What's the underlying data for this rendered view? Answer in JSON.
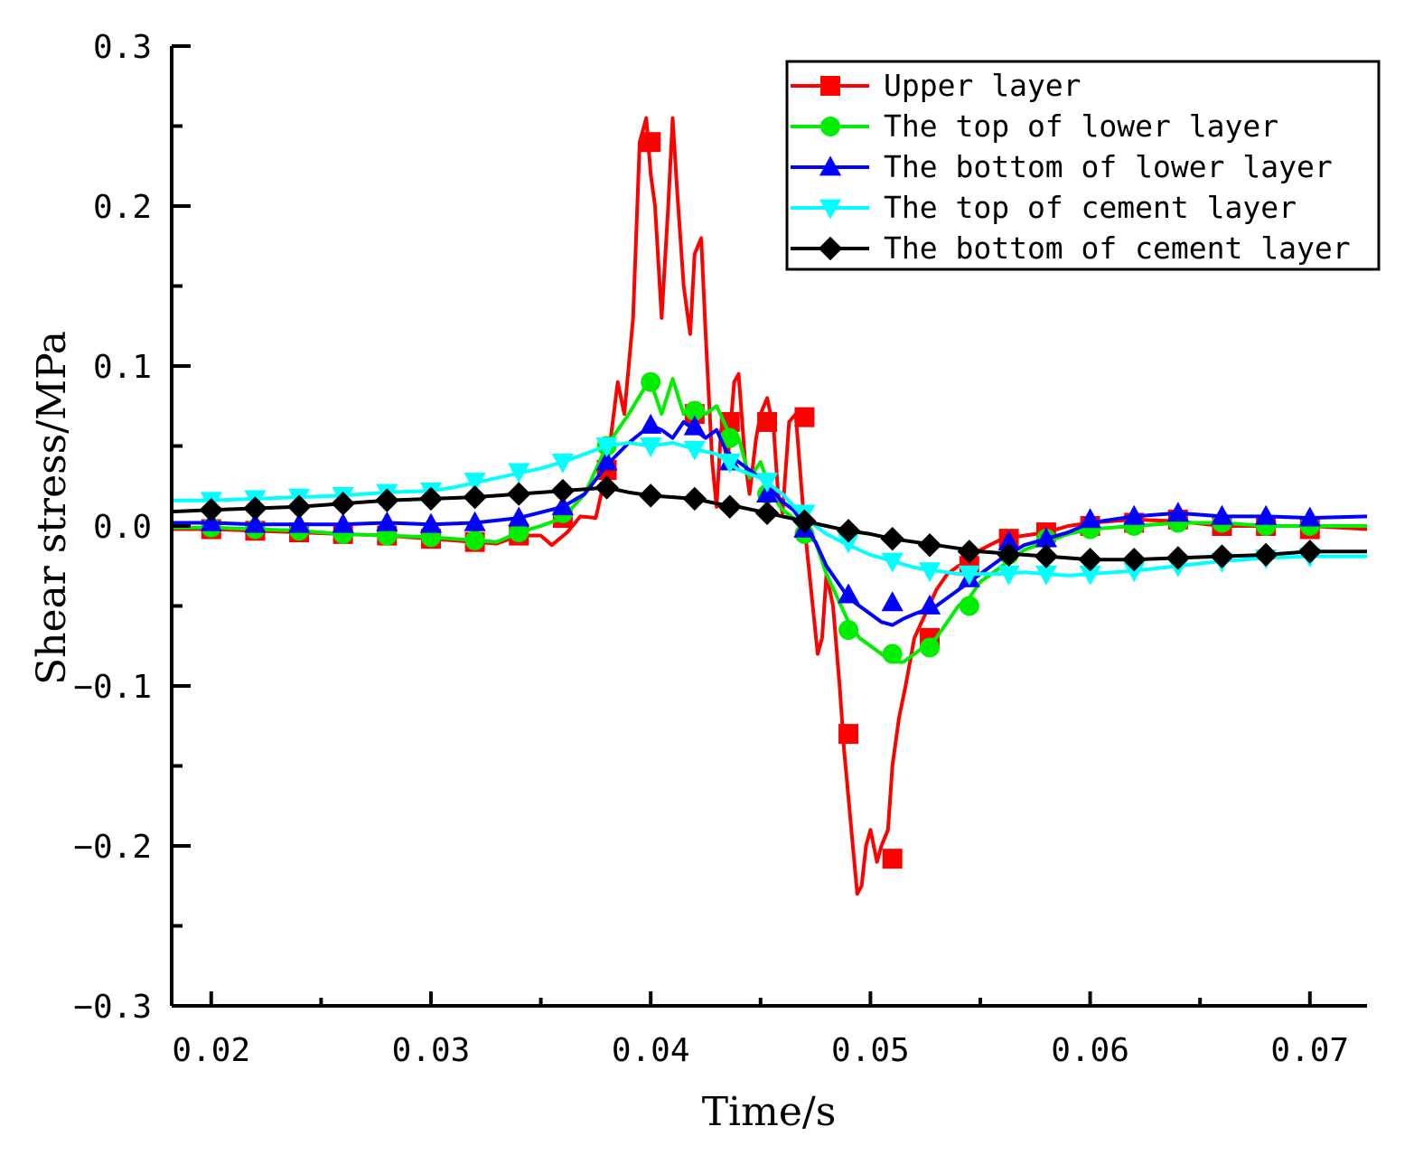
{
  "chart_data": {
    "type": "line",
    "title": "",
    "xlabel": "Time/s",
    "ylabel": "Shear stress/MPa",
    "xlim": [
      0.0182,
      0.0726
    ],
    "ylim": [
      -0.3,
      0.3
    ],
    "xticks": [
      0.02,
      0.03,
      0.04,
      0.05,
      0.06,
      0.07
    ],
    "xtick_labels": [
      "0.02",
      "0.03",
      "0.04",
      "0.05",
      "0.06",
      "0.07"
    ],
    "yticks": [
      0.3,
      0.2,
      0.1,
      0.0,
      -0.1,
      -0.2,
      -0.3
    ],
    "ytick_labels": [
      "0.3",
      "0.2",
      "0.1",
      "0.0",
      "−0.1",
      "−0.2",
      "−0.3"
    ],
    "grid": false,
    "legend_position": "top-right",
    "series": [
      {
        "name": "Upper layer",
        "color": "#ff0000",
        "marker": "square",
        "x": [
          0.0182,
          0.02,
          0.022,
          0.024,
          0.026,
          0.028,
          0.03,
          0.032,
          0.033,
          0.034,
          0.035,
          0.0355,
          0.0362,
          0.0368,
          0.0375,
          0.038,
          0.0385,
          0.0388,
          0.0392,
          0.0395,
          0.0398,
          0.04,
          0.0402,
          0.0405,
          0.0408,
          0.041,
          0.0412,
          0.0415,
          0.0418,
          0.042,
          0.0423,
          0.0425,
          0.0428,
          0.043,
          0.0432,
          0.0435,
          0.0438,
          0.044,
          0.0443,
          0.0445,
          0.0448,
          0.045,
          0.0453,
          0.0456,
          0.0458,
          0.046,
          0.0463,
          0.0466,
          0.0468,
          0.047,
          0.0473,
          0.0476,
          0.0478,
          0.048,
          0.0483,
          0.0486,
          0.0488,
          0.049,
          0.0492,
          0.0494,
          0.0496,
          0.0498,
          0.05,
          0.0503,
          0.0505,
          0.0508,
          0.051,
          0.0513,
          0.0516,
          0.052,
          0.0525,
          0.053,
          0.0535,
          0.054,
          0.0545,
          0.055,
          0.056,
          0.057,
          0.058,
          0.059,
          0.06,
          0.062,
          0.064,
          0.066,
          0.068,
          0.07,
          0.0726
        ],
        "y": [
          -0.002,
          -0.002,
          -0.003,
          -0.004,
          -0.005,
          -0.006,
          -0.008,
          -0.01,
          -0.011,
          -0.006,
          -0.006,
          -0.012,
          -0.004,
          0.006,
          0.005,
          0.035,
          0.09,
          0.07,
          0.13,
          0.24,
          0.255,
          0.22,
          0.2,
          0.13,
          0.2,
          0.255,
          0.21,
          0.15,
          0.12,
          0.17,
          0.18,
          0.12,
          0.04,
          0.012,
          0.06,
          0.04,
          0.09,
          0.095,
          0.04,
          0.02,
          0.055,
          0.07,
          0.08,
          0.06,
          0.02,
          0.008,
          0.065,
          0.07,
          0.035,
          0.0,
          -0.04,
          -0.08,
          -0.07,
          -0.03,
          -0.05,
          -0.1,
          -0.14,
          -0.17,
          -0.2,
          -0.23,
          -0.225,
          -0.2,
          -0.19,
          -0.21,
          -0.2,
          -0.19,
          -0.15,
          -0.12,
          -0.1,
          -0.07,
          -0.055,
          -0.04,
          -0.03,
          -0.025,
          -0.022,
          -0.015,
          -0.008,
          -0.006,
          -0.004,
          0.0,
          0.002,
          0.004,
          0.003,
          0.0,
          0.0,
          0.0,
          -0.002
        ],
        "marker_x": [
          0.02,
          0.022,
          0.024,
          0.026,
          0.028,
          0.03,
          0.032,
          0.034,
          0.036,
          0.038,
          0.04,
          0.042,
          0.0436,
          0.0453,
          0.047,
          0.049,
          0.051,
          0.0527,
          0.0545,
          0.0563,
          0.058,
          0.06,
          0.062,
          0.064,
          0.066,
          0.068,
          0.07
        ],
        "marker_y": [
          -0.002,
          -0.003,
          -0.004,
          -0.005,
          -0.006,
          -0.008,
          -0.01,
          -0.006,
          0.005,
          0.035,
          0.24,
          0.07,
          0.065,
          0.065,
          0.068,
          -0.13,
          -0.208,
          -0.07,
          -0.025,
          -0.008,
          -0.004,
          0.0,
          0.002,
          0.004,
          0.0,
          0.0,
          -0.002
        ]
      },
      {
        "name": "The top of lower layer",
        "color": "#00ee00",
        "marker": "circle",
        "x": [
          0.0182,
          0.02,
          0.022,
          0.024,
          0.026,
          0.028,
          0.03,
          0.032,
          0.033,
          0.034,
          0.035,
          0.036,
          0.037,
          0.038,
          0.039,
          0.0398,
          0.04,
          0.0405,
          0.041,
          0.0415,
          0.042,
          0.0425,
          0.043,
          0.0435,
          0.044,
          0.0445,
          0.045,
          0.0455,
          0.046,
          0.0465,
          0.047,
          0.0475,
          0.048,
          0.0485,
          0.049,
          0.0495,
          0.05,
          0.0505,
          0.051,
          0.0515,
          0.052,
          0.0525,
          0.053,
          0.0535,
          0.054,
          0.0545,
          0.055,
          0.056,
          0.057,
          0.058,
          0.059,
          0.06,
          0.062,
          0.064,
          0.066,
          0.068,
          0.07,
          0.0726
        ],
        "y": [
          -0.001,
          -0.001,
          -0.002,
          -0.003,
          -0.005,
          -0.006,
          -0.007,
          -0.009,
          -0.01,
          -0.004,
          0.0,
          0.005,
          0.02,
          0.05,
          0.07,
          0.088,
          0.09,
          0.07,
          0.092,
          0.07,
          0.075,
          0.07,
          0.075,
          0.06,
          0.055,
          0.03,
          0.04,
          0.02,
          0.01,
          0.005,
          -0.005,
          -0.01,
          -0.03,
          -0.045,
          -0.06,
          -0.07,
          -0.075,
          -0.08,
          -0.085,
          -0.085,
          -0.08,
          -0.075,
          -0.07,
          -0.06,
          -0.05,
          -0.045,
          -0.035,
          -0.025,
          -0.015,
          -0.01,
          -0.005,
          -0.002,
          0.0,
          0.002,
          0.002,
          0.0,
          0.0,
          0.0
        ],
        "marker_x": [
          0.02,
          0.022,
          0.024,
          0.026,
          0.028,
          0.03,
          0.032,
          0.034,
          0.036,
          0.038,
          0.04,
          0.042,
          0.0436,
          0.0453,
          0.047,
          0.049,
          0.051,
          0.0527,
          0.0545,
          0.0563,
          0.058,
          0.06,
          0.062,
          0.064,
          0.066,
          0.068,
          0.07
        ],
        "marker_y": [
          -0.001,
          -0.002,
          -0.003,
          -0.005,
          -0.006,
          -0.007,
          -0.009,
          -0.004,
          0.008,
          0.05,
          0.09,
          0.072,
          0.055,
          0.02,
          -0.005,
          -0.065,
          -0.08,
          -0.076,
          -0.05,
          -0.018,
          -0.008,
          -0.002,
          0.0,
          0.002,
          0.002,
          0.0,
          0.0
        ]
      },
      {
        "name": "The bottom of lower layer",
        "color": "#0000ff",
        "marker": "triangle-up",
        "x": [
          0.0182,
          0.02,
          0.022,
          0.024,
          0.026,
          0.028,
          0.03,
          0.032,
          0.034,
          0.036,
          0.037,
          0.038,
          0.039,
          0.04,
          0.0405,
          0.041,
          0.0415,
          0.042,
          0.0425,
          0.043,
          0.0435,
          0.044,
          0.045,
          0.046,
          0.0465,
          0.047,
          0.0475,
          0.048,
          0.0485,
          0.049,
          0.0495,
          0.05,
          0.0505,
          0.051,
          0.0515,
          0.052,
          0.053,
          0.054,
          0.055,
          0.056,
          0.057,
          0.058,
          0.059,
          0.06,
          0.062,
          0.064,
          0.066,
          0.068,
          0.07,
          0.0726
        ],
        "y": [
          0.002,
          0.002,
          0.001,
          0.001,
          0.001,
          0.002,
          0.001,
          0.002,
          0.005,
          0.012,
          0.02,
          0.038,
          0.052,
          0.063,
          0.06,
          0.055,
          0.065,
          0.06,
          0.055,
          0.06,
          0.045,
          0.04,
          0.03,
          0.015,
          0.01,
          0.0,
          -0.01,
          -0.025,
          -0.035,
          -0.045,
          -0.05,
          -0.055,
          -0.06,
          -0.062,
          -0.058,
          -0.055,
          -0.05,
          -0.04,
          -0.03,
          -0.02,
          -0.012,
          -0.008,
          -0.004,
          0.002,
          0.006,
          0.008,
          0.006,
          0.006,
          0.005,
          0.006
        ],
        "marker_x": [
          0.02,
          0.022,
          0.024,
          0.026,
          0.028,
          0.03,
          0.032,
          0.034,
          0.036,
          0.038,
          0.04,
          0.042,
          0.0436,
          0.0453,
          0.047,
          0.049,
          0.051,
          0.0527,
          0.0545,
          0.0563,
          0.058,
          0.06,
          0.062,
          0.064,
          0.066,
          0.068,
          0.07
        ],
        "marker_y": [
          0.002,
          0.001,
          0.001,
          0.001,
          0.002,
          0.001,
          0.002,
          0.005,
          0.012,
          0.04,
          0.063,
          0.062,
          0.04,
          0.02,
          -0.002,
          -0.043,
          -0.048,
          -0.05,
          -0.033,
          -0.01,
          -0.008,
          0.004,
          0.006,
          0.008,
          0.006,
          0.006,
          0.005
        ]
      },
      {
        "name": "The top of cement layer",
        "color": "#00ffff",
        "marker": "triangle-down",
        "x": [
          0.0182,
          0.02,
          0.022,
          0.024,
          0.026,
          0.028,
          0.03,
          0.031,
          0.032,
          0.033,
          0.034,
          0.035,
          0.036,
          0.037,
          0.038,
          0.039,
          0.04,
          0.041,
          0.042,
          0.043,
          0.044,
          0.045,
          0.046,
          0.047,
          0.048,
          0.049,
          0.05,
          0.051,
          0.052,
          0.053,
          0.054,
          0.055,
          0.056,
          0.057,
          0.058,
          0.059,
          0.06,
          0.062,
          0.064,
          0.066,
          0.068,
          0.07,
          0.0726
        ],
        "y": [
          0.016,
          0.016,
          0.017,
          0.018,
          0.019,
          0.021,
          0.022,
          0.024,
          0.027,
          0.03,
          0.033,
          0.036,
          0.04,
          0.045,
          0.05,
          0.052,
          0.05,
          0.052,
          0.048,
          0.045,
          0.035,
          0.03,
          0.02,
          0.005,
          -0.005,
          -0.012,
          -0.018,
          -0.022,
          -0.026,
          -0.028,
          -0.03,
          -0.03,
          -0.03,
          -0.029,
          -0.03,
          -0.031,
          -0.03,
          -0.028,
          -0.025,
          -0.022,
          -0.02,
          -0.019,
          -0.019
        ],
        "marker_x": [
          0.02,
          0.022,
          0.024,
          0.026,
          0.028,
          0.03,
          0.032,
          0.034,
          0.036,
          0.038,
          0.04,
          0.042,
          0.0436,
          0.0453,
          0.047,
          0.049,
          0.051,
          0.0527,
          0.0545,
          0.0563,
          0.058,
          0.06,
          0.062,
          0.064,
          0.066,
          0.068,
          0.07
        ],
        "marker_y": [
          0.016,
          0.017,
          0.018,
          0.019,
          0.021,
          0.022,
          0.028,
          0.034,
          0.04,
          0.05,
          0.05,
          0.048,
          0.04,
          0.028,
          0.008,
          -0.01,
          -0.022,
          -0.028,
          -0.03,
          -0.03,
          -0.03,
          -0.03,
          -0.028,
          -0.025,
          -0.022,
          -0.02,
          -0.019
        ]
      },
      {
        "name": "The bottom of cement layer",
        "color": "#000000",
        "marker": "diamond",
        "x": [
          0.0182,
          0.02,
          0.022,
          0.024,
          0.026,
          0.028,
          0.03,
          0.032,
          0.034,
          0.036,
          0.038,
          0.039,
          0.04,
          0.041,
          0.042,
          0.043,
          0.044,
          0.045,
          0.046,
          0.047,
          0.048,
          0.049,
          0.05,
          0.051,
          0.052,
          0.053,
          0.054,
          0.055,
          0.056,
          0.057,
          0.058,
          0.059,
          0.06,
          0.062,
          0.064,
          0.066,
          0.068,
          0.07,
          0.0726
        ],
        "y": [
          0.009,
          0.01,
          0.011,
          0.012,
          0.014,
          0.016,
          0.017,
          0.018,
          0.02,
          0.022,
          0.024,
          0.021,
          0.019,
          0.018,
          0.017,
          0.014,
          0.012,
          0.009,
          0.006,
          0.003,
          0.0,
          -0.003,
          -0.005,
          -0.008,
          -0.01,
          -0.012,
          -0.014,
          -0.016,
          -0.017,
          -0.018,
          -0.019,
          -0.02,
          -0.021,
          -0.021,
          -0.02,
          -0.019,
          -0.018,
          -0.016,
          -0.016
        ],
        "marker_x": [
          0.02,
          0.022,
          0.024,
          0.026,
          0.028,
          0.03,
          0.032,
          0.034,
          0.036,
          0.038,
          0.04,
          0.042,
          0.0436,
          0.0453,
          0.047,
          0.049,
          0.051,
          0.0527,
          0.0545,
          0.0563,
          0.058,
          0.06,
          0.062,
          0.064,
          0.066,
          0.068,
          0.07
        ],
        "marker_y": [
          0.01,
          0.011,
          0.012,
          0.014,
          0.016,
          0.017,
          0.018,
          0.02,
          0.022,
          0.024,
          0.019,
          0.017,
          0.012,
          0.008,
          0.003,
          -0.003,
          -0.008,
          -0.012,
          -0.016,
          -0.018,
          -0.019,
          -0.021,
          -0.021,
          -0.02,
          -0.019,
          -0.018,
          -0.016
        ]
      }
    ]
  }
}
